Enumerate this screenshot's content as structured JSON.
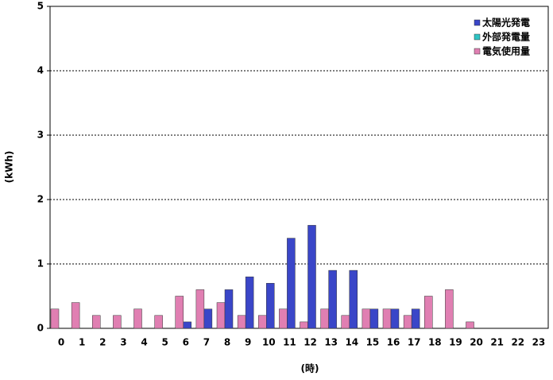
{
  "chart_data": {
    "type": "bar",
    "y_label": "(kWh)",
    "x_label": "(時)",
    "categories": [
      "0",
      "1",
      "2",
      "3",
      "4",
      "5",
      "6",
      "7",
      "8",
      "9",
      "10",
      "11",
      "12",
      "13",
      "14",
      "15",
      "16",
      "17",
      "18",
      "19",
      "20",
      "21",
      "22",
      "23"
    ],
    "series": [
      {
        "name": "太陽光発電",
        "color": "#3a46c8",
        "values": [
          0,
          0,
          0,
          0,
          0,
          0,
          0.1,
          0.3,
          0.6,
          0.8,
          0.7,
          1.4,
          1.6,
          0.9,
          0.9,
          0.3,
          0.3,
          0.3,
          0,
          0,
          0,
          0,
          0,
          0
        ]
      },
      {
        "name": "外部発電量",
        "color": "#2ec4c4",
        "values": [
          0,
          0,
          0,
          0,
          0,
          0,
          0,
          0,
          0,
          0,
          0,
          0,
          0,
          0,
          0,
          0,
          0,
          0,
          0,
          0,
          0,
          0,
          0,
          0
        ]
      },
      {
        "name": "電気使用量",
        "color": "#e07fb2",
        "values": [
          0.3,
          0.4,
          0.2,
          0.2,
          0.3,
          0.2,
          0.5,
          0.6,
          0.4,
          0.2,
          0.2,
          0.3,
          0.1,
          0.3,
          0.2,
          0.3,
          0.3,
          0.2,
          0.5,
          0.6,
          0.1,
          0,
          0,
          0
        ]
      }
    ],
    "ylim": [
      0,
      5
    ],
    "yticks": [
      0,
      1,
      2,
      3,
      4,
      5
    ],
    "grid": true,
    "legend": "top-right"
  }
}
